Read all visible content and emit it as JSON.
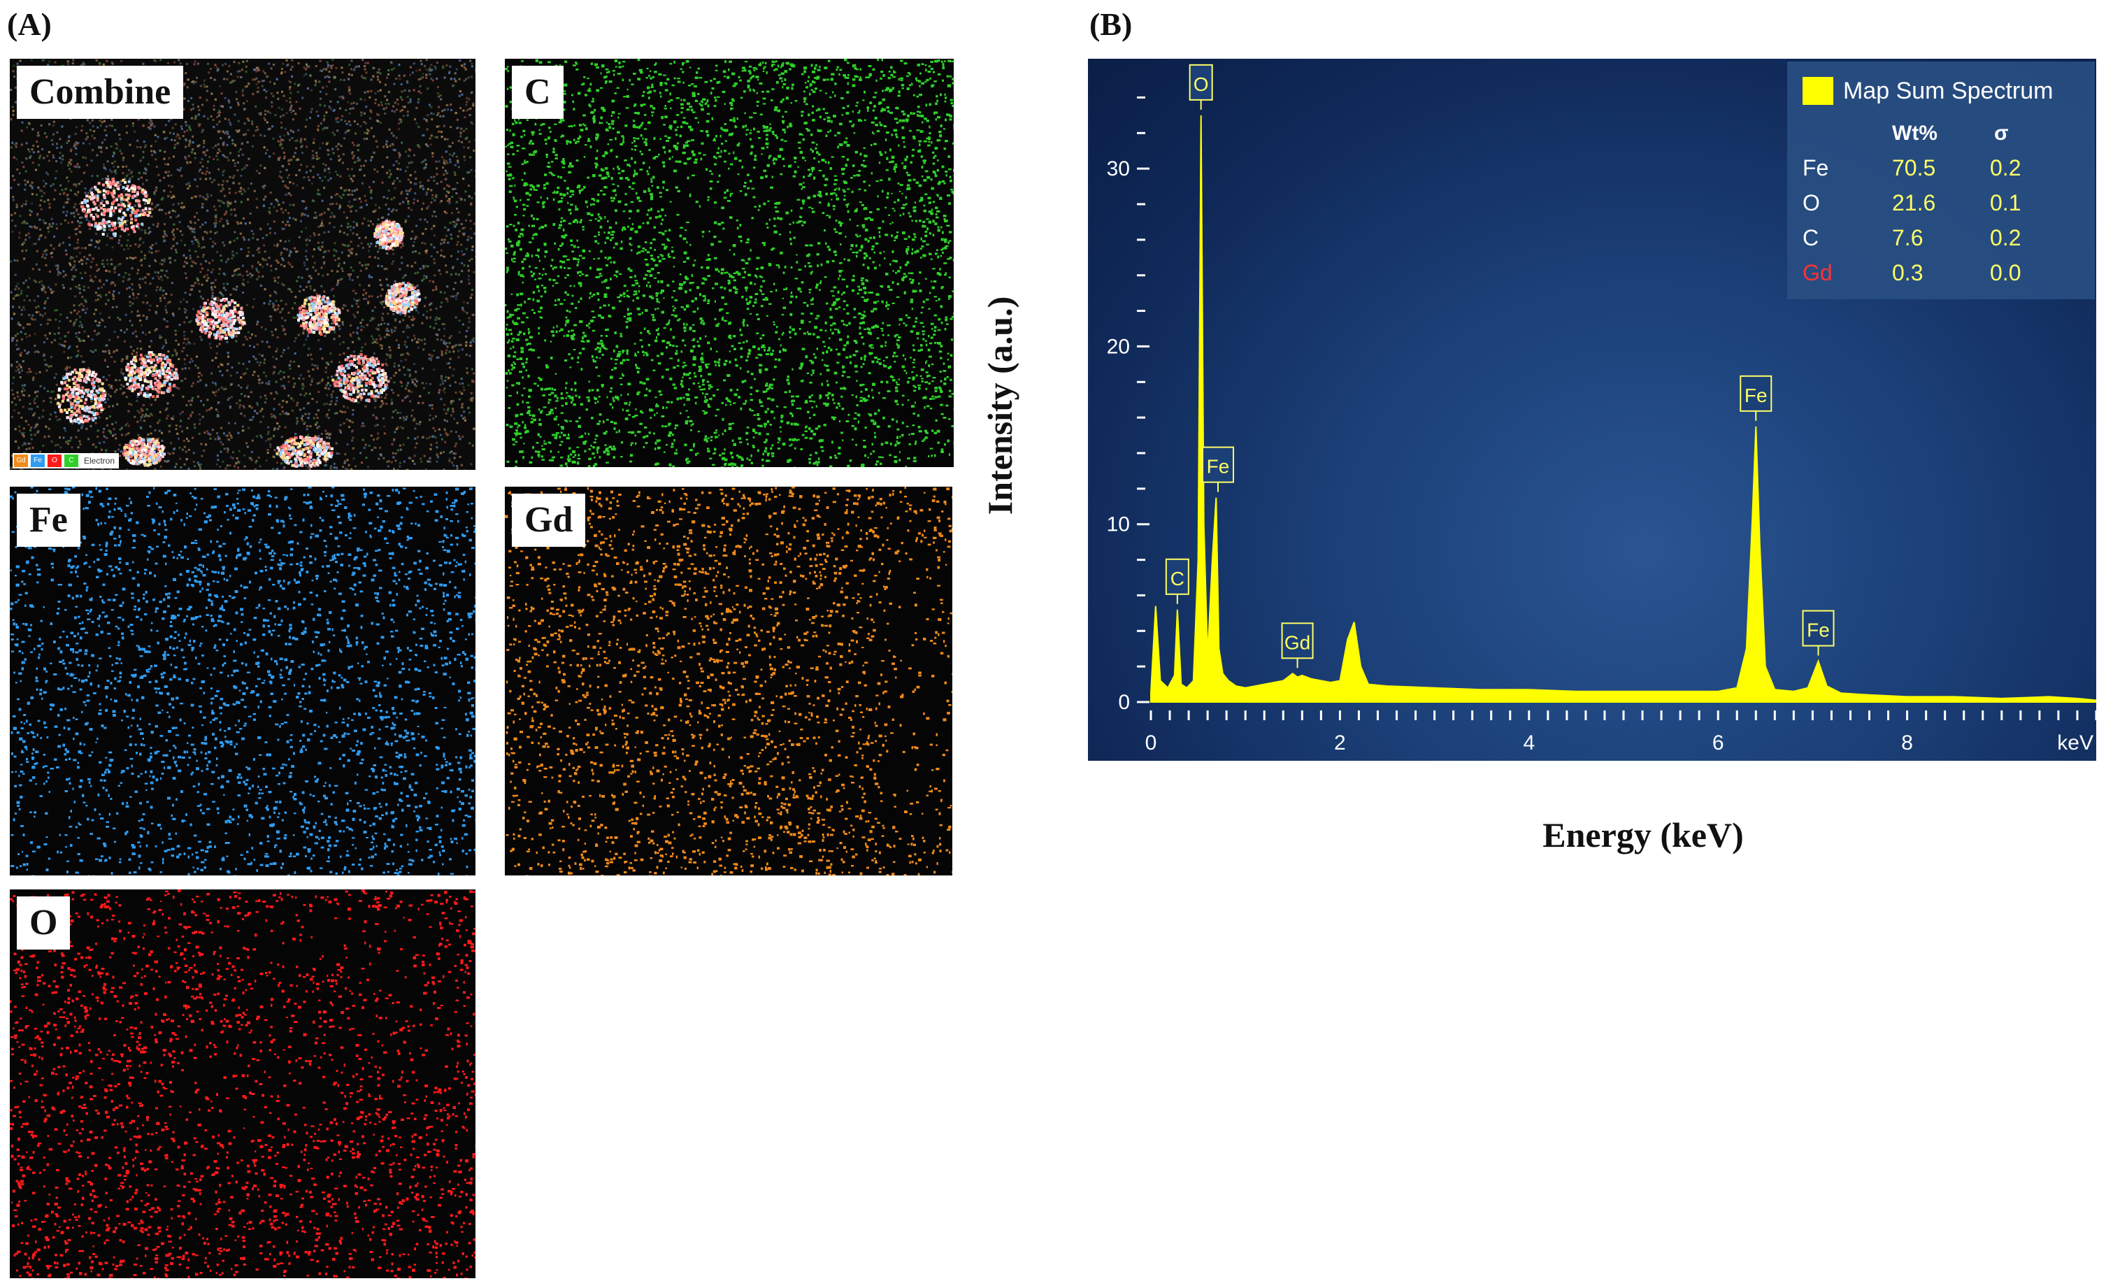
{
  "panel_a_label": "(A)",
  "panel_b_label": "(B)",
  "maps": [
    {
      "key": "combine",
      "label": "Combine",
      "color": "mixed"
    },
    {
      "key": "c",
      "label": "C",
      "color": "#2fd02a"
    },
    {
      "key": "fe",
      "label": "Fe",
      "color": "#2f9bf0"
    },
    {
      "key": "gd",
      "label": "Gd",
      "color": "#f08a1a"
    },
    {
      "key": "o",
      "label": "O",
      "color": "#ff1a1a"
    }
  ],
  "combine_legend": {
    "swatches": [
      {
        "text": "Gd",
        "color": "#f08a1a"
      },
      {
        "text": "Fe",
        "color": "#2f9bf0"
      },
      {
        "text": "O",
        "color": "#ff1a1a"
      },
      {
        "text": "C",
        "color": "#2fd02a"
      }
    ],
    "label": "Electron"
  },
  "spectrum": {
    "legend_title": "Map Sum Spectrum",
    "table_headers": [
      "Wt%",
      "σ"
    ],
    "table_rows": [
      {
        "element": "Fe",
        "wt": "70.5",
        "sigma": "0.2",
        "color": "#ffffff"
      },
      {
        "element": "O",
        "wt": "21.6",
        "sigma": "0.1",
        "color": "#ffffff"
      },
      {
        "element": "C",
        "wt": "7.6",
        "sigma": "0.2",
        "color": "#ffffff"
      },
      {
        "element": "Gd",
        "wt": "0.3",
        "sigma": "0.0",
        "color": "#ff3333"
      }
    ],
    "ylabel": "Intensity (a.u.)",
    "xlabel": "Energy (keV)",
    "x_unit": "keV"
  },
  "chart_data": {
    "type": "line",
    "title": "",
    "xlabel": "Energy (keV)",
    "ylabel": "Intensity (a.u.)",
    "xlim": [
      0,
      10
    ],
    "ylim": [
      0,
      35
    ],
    "x_ticks": [
      0,
      2,
      4,
      6,
      8
    ],
    "y_ticks": [
      0,
      10,
      20,
      30
    ],
    "series": [
      {
        "color": "#ffff00",
        "x": [
          0.0,
          0.05,
          0.1,
          0.18,
          0.25,
          0.28,
          0.32,
          0.38,
          0.45,
          0.5,
          0.53,
          0.56,
          0.6,
          0.65,
          0.69,
          0.72,
          0.76,
          0.82,
          0.9,
          1.0,
          1.2,
          1.4,
          1.5,
          1.55,
          1.6,
          1.7,
          1.9,
          2.0,
          2.08,
          2.15,
          2.22,
          2.3,
          2.5,
          3.0,
          3.5,
          4.0,
          4.5,
          5.0,
          5.5,
          6.0,
          6.2,
          6.3,
          6.36,
          6.4,
          6.44,
          6.5,
          6.6,
          6.8,
          6.95,
          7.06,
          7.15,
          7.3,
          7.6,
          8.0,
          8.5,
          9.0,
          9.5,
          9.8,
          10.0
        ],
        "y": [
          0.5,
          5.4,
          1.2,
          0.8,
          1.5,
          5.2,
          1.0,
          0.8,
          1.2,
          8.0,
          33.0,
          10.0,
          2.5,
          8.0,
          11.5,
          3.0,
          1.6,
          1.2,
          0.9,
          0.8,
          1.0,
          1.2,
          1.6,
          1.4,
          1.5,
          1.3,
          1.1,
          1.2,
          3.5,
          4.5,
          2.0,
          1.0,
          0.9,
          0.8,
          0.7,
          0.7,
          0.6,
          0.6,
          0.6,
          0.6,
          0.8,
          3.0,
          10.0,
          15.5,
          9.0,
          2.0,
          0.7,
          0.6,
          0.8,
          2.3,
          0.9,
          0.5,
          0.4,
          0.3,
          0.3,
          0.2,
          0.3,
          0.2,
          0.1
        ]
      }
    ],
    "peak_labels": [
      {
        "text": "O",
        "x": 0.53,
        "y": 33.0
      },
      {
        "text": "Fe",
        "x": 0.71,
        "y": 11.5
      },
      {
        "text": "C",
        "x": 0.28,
        "y": 5.2
      },
      {
        "text": "Gd",
        "x": 1.55,
        "y": 1.6
      },
      {
        "text": "Fe",
        "x": 6.4,
        "y": 15.5
      },
      {
        "text": "Fe",
        "x": 7.06,
        "y": 2.3
      }
    ]
  }
}
